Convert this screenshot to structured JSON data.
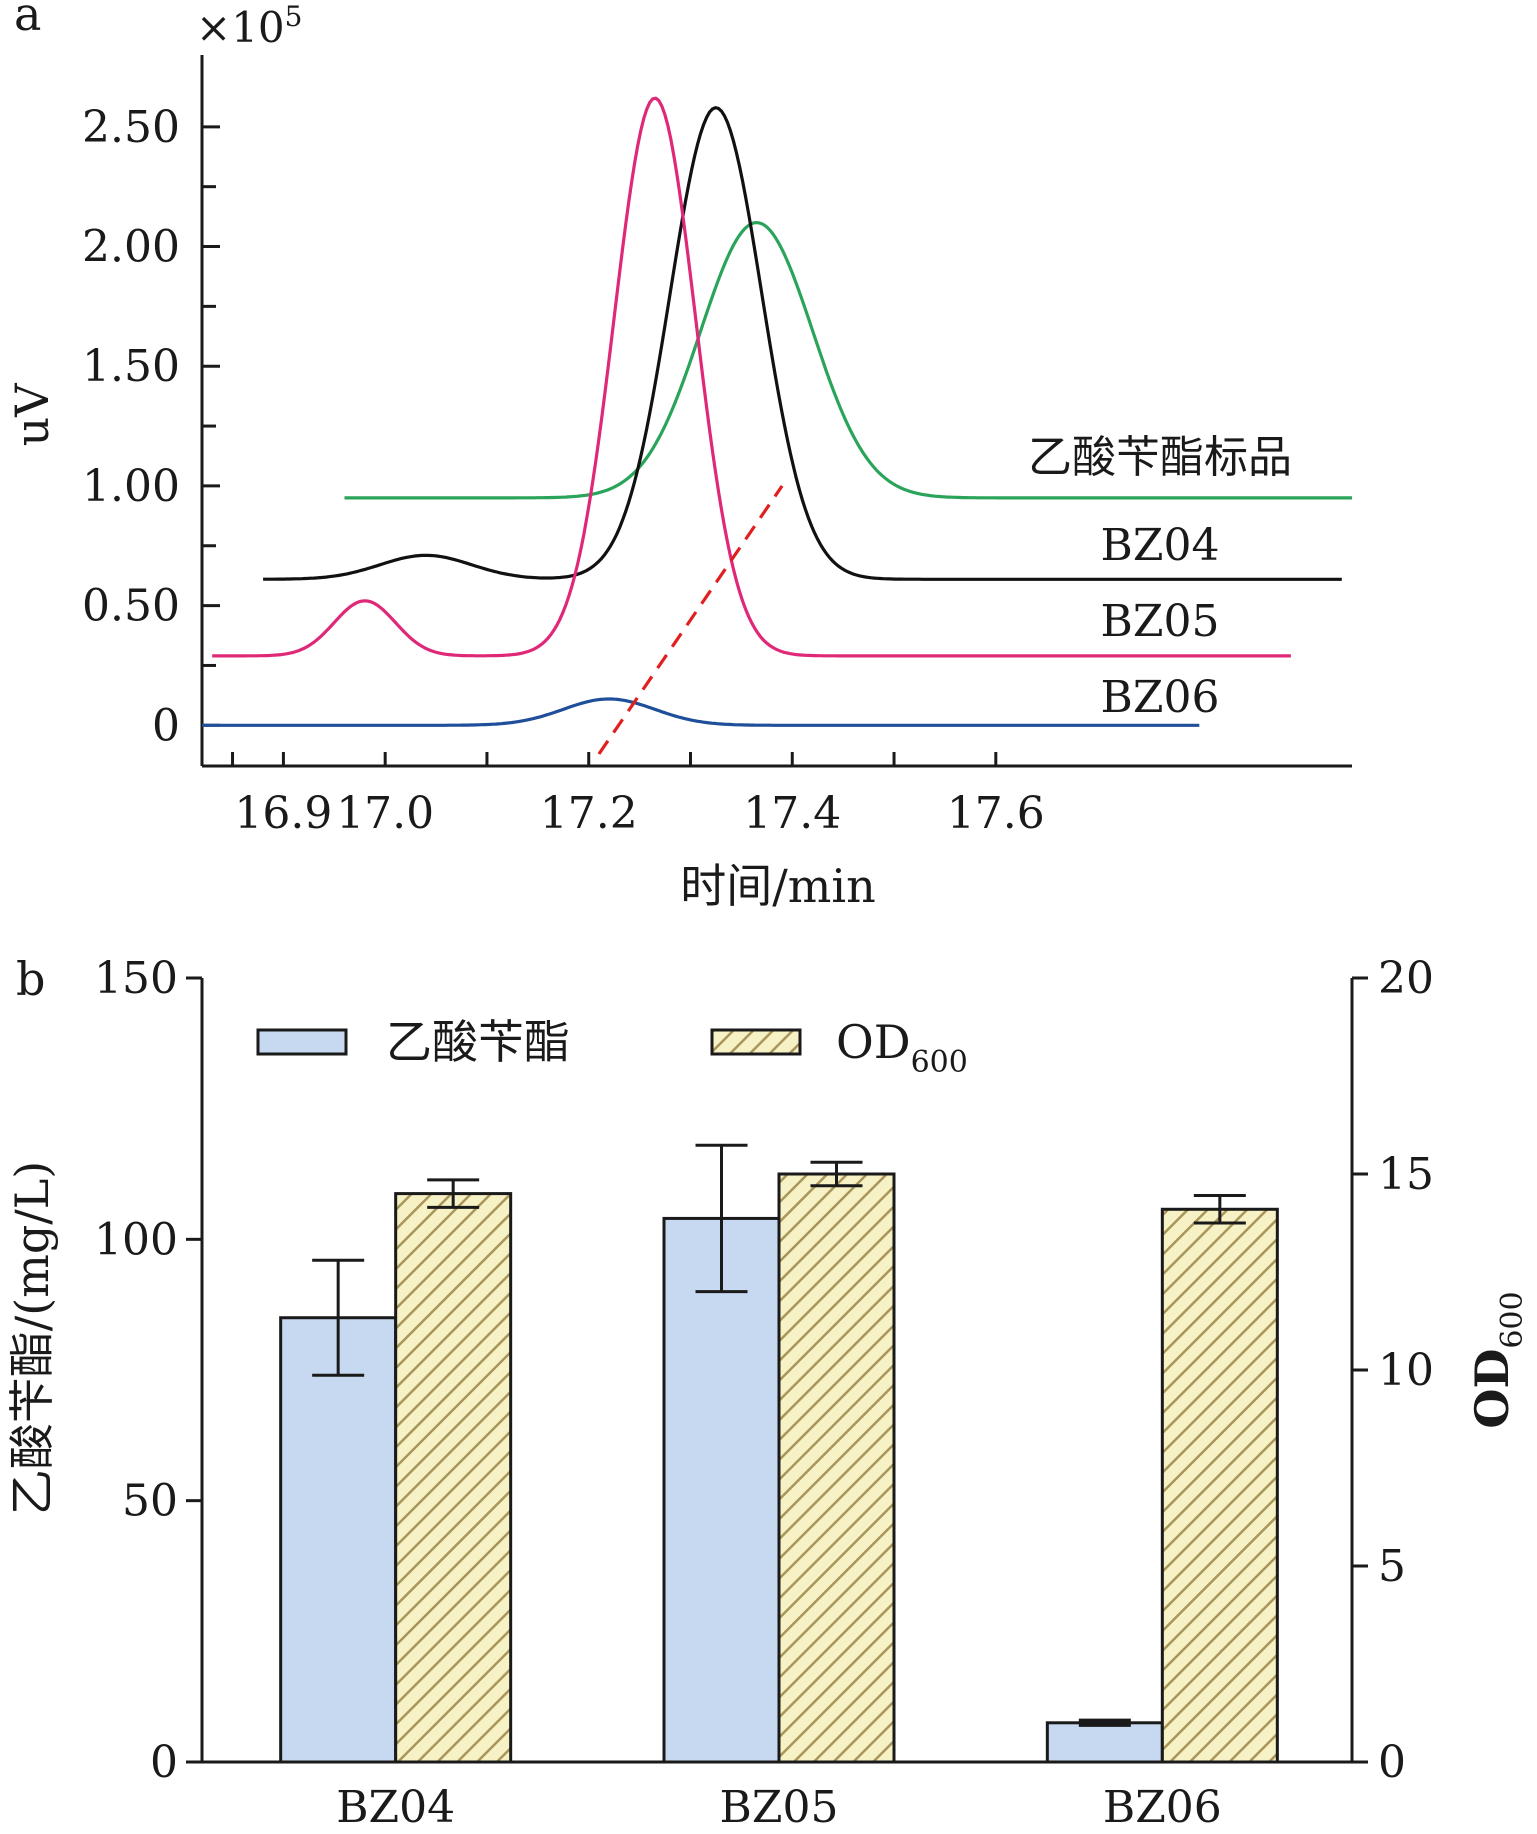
{
  "chart_data": [
    {
      "panel": "a",
      "type": "line",
      "xlabel": "时间/min",
      "ylabel": "uV",
      "y_multiplier": "×10",
      "y_multiplier_exp": "5",
      "x_ticks": [
        16.9,
        17.0,
        17.2,
        17.4,
        17.6
      ],
      "x_tick_labels": [
        "16.9",
        "17.0",
        "17.2",
        "17.4",
        "17.6"
      ],
      "y_ticks": [
        0,
        0.5,
        1.0,
        1.5,
        2.0,
        2.5
      ],
      "y_tick_labels": [
        "0",
        "0.50",
        "1.00",
        "1.50",
        "2.00",
        "2.50"
      ],
      "xlim": [
        16.82,
        17.95
      ],
      "ylim": [
        -0.17,
        2.8
      ],
      "series": [
        {
          "name": "乙酸苄酯标品",
          "color": "#2aa45a",
          "x_start": 16.96,
          "x_end": 17.95,
          "baseline": 0.95,
          "peaks": [
            {
              "center": 17.365,
              "height": 1.15,
              "width": 0.055
            }
          ]
        },
        {
          "name": "BZ04",
          "color": "#111111",
          "x_start": 16.88,
          "x_end": 17.94,
          "baseline": 0.61,
          "peaks": [
            {
              "center": 17.04,
              "height": 0.1,
              "width": 0.045
            },
            {
              "center": 17.325,
              "height": 1.97,
              "width": 0.045
            }
          ]
        },
        {
          "name": "BZ05",
          "color": "#e02878",
          "x_start": 16.83,
          "x_end": 17.89,
          "baseline": 0.29,
          "peaks": [
            {
              "center": 16.98,
              "height": 0.23,
              "width": 0.03
            },
            {
              "center": 17.265,
              "height": 2.33,
              "width": 0.04
            }
          ]
        },
        {
          "name": "BZ06",
          "color": "#1f4e9a",
          "x_start": 16.82,
          "x_end": 17.8,
          "baseline": 0.0,
          "peaks": [
            {
              "center": 17.22,
              "height": 0.11,
              "width": 0.045
            }
          ]
        }
      ],
      "annotation": {
        "type": "dashed-line",
        "color": "#e02020",
        "from": [
          17.21,
          -0.12
        ],
        "to": [
          17.39,
          1.0
        ]
      }
    },
    {
      "panel": "b",
      "type": "bar",
      "categories": [
        "BZ04",
        "BZ05",
        "BZ06"
      ],
      "ylabel": "乙酸苄酯/(mg/L)",
      "y2label": "OD",
      "y2label_sub": "600",
      "ylim": [
        0,
        150
      ],
      "y2lim": [
        0,
        20
      ],
      "y_ticks": [
        0,
        50,
        100,
        150
      ],
      "y2_ticks": [
        0,
        5,
        10,
        15,
        20
      ],
      "series": [
        {
          "name": "乙酸苄酯",
          "axis": "left",
          "fill": "#c6d9f0",
          "pattern": "solid",
          "values": [
            85,
            104,
            7.5
          ],
          "errors": [
            11,
            14,
            0.5
          ]
        },
        {
          "name": "OD",
          "name_sub": "600",
          "axis": "right",
          "fill": "#f7f1c6",
          "pattern": "hatch",
          "hatch_color": "#a8965a",
          "values": [
            14.5,
            15.0,
            14.1
          ],
          "errors": [
            0.35,
            0.3,
            0.35
          ]
        }
      ]
    }
  ]
}
